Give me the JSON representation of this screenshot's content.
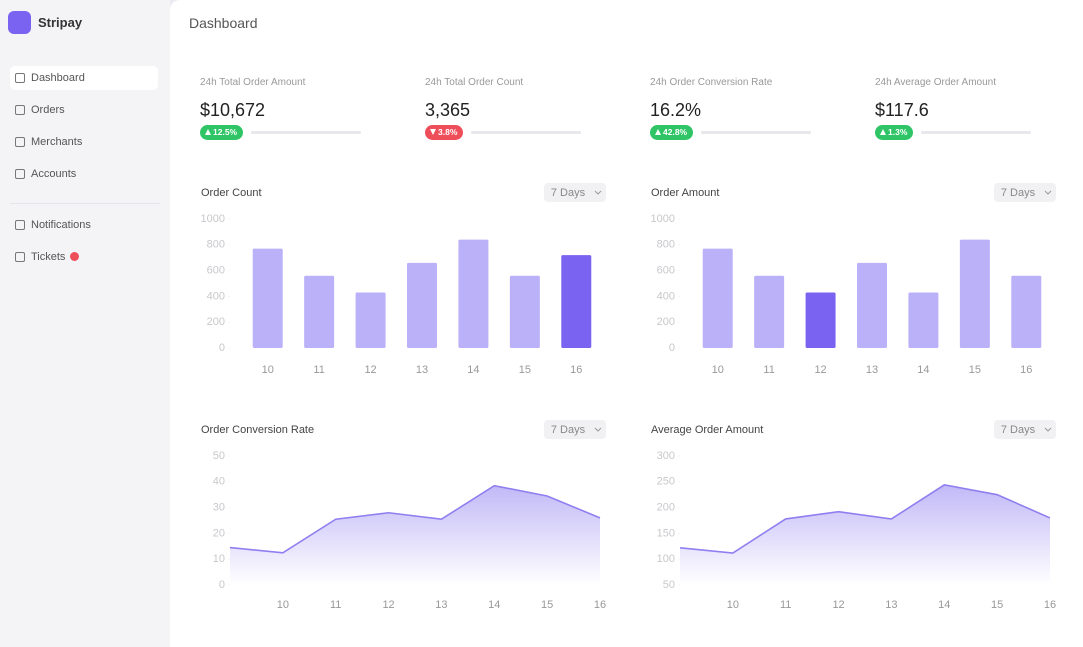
{
  "app": {
    "name": "Stripay"
  },
  "nav": [
    {
      "label": "Dashboard",
      "active": true
    },
    {
      "label": "Orders"
    },
    {
      "label": "Merchants"
    },
    {
      "label": "Accounts"
    },
    {
      "label": "Notifications"
    },
    {
      "label": "Tickets"
    }
  ],
  "header": {
    "title": "Dashboard"
  },
  "stats": [
    {
      "label": "24h Total Order Amount",
      "value": "$10,672",
      "change": "12.5%",
      "trend": "up"
    },
    {
      "label": "24h Total Order Count",
      "value": "3,365",
      "change": "3.8%",
      "trend": "down"
    },
    {
      "label": "24h Order Conversion Rate",
      "value": "16.2%",
      "change": "42.8%",
      "trend": "up"
    },
    {
      "label": "24h Average Order Amount",
      "value": "$117.6",
      "change": "1.3%",
      "trend": "up"
    }
  ],
  "chart_data": [
    {
      "type": "bar",
      "title": "Order Count",
      "range": "7 Days",
      "categories": [
        "10",
        "11",
        "12",
        "13",
        "14",
        "15",
        "16"
      ],
      "values": [
        770,
        560,
        430,
        660,
        840,
        560,
        720
      ],
      "colors": [
        "#bab1f8",
        "#bab1f8",
        "#bab1f8",
        "#bab1f8",
        "#bab1f8",
        "#bab1f8",
        "#7a63f0"
      ],
      "ylim": [
        0,
        1000
      ],
      "yticks": [
        0,
        200,
        400,
        600,
        800,
        1000
      ]
    },
    {
      "type": "bar",
      "title": "Order Amount",
      "range": "7 Days",
      "categories": [
        "10",
        "11",
        "12",
        "13",
        "14",
        "15",
        "16"
      ],
      "values": [
        770,
        560,
        430,
        660,
        430,
        840,
        560
      ],
      "colors": [
        "#bab1f8",
        "#bab1f8",
        "#7a63f0",
        "#bab1f8",
        "#bab1f8",
        "#bab1f8",
        "#bab1f8"
      ],
      "ylim": [
        0,
        1000
      ],
      "yticks": [
        0,
        200,
        400,
        600,
        800,
        1000
      ]
    },
    {
      "type": "area",
      "title": "Order Conversion Rate",
      "range": "7 Days",
      "categories": [
        null,
        "10",
        "11",
        "12",
        "13",
        "14",
        "15",
        "16"
      ],
      "values": [
        14.5,
        12.5,
        25.5,
        28,
        25.5,
        38.5,
        34.5,
        26
      ],
      "color": "#8f7ff0",
      "ylim": [
        0,
        50
      ],
      "yticks": [
        0,
        10,
        20,
        30,
        40,
        50
      ]
    },
    {
      "type": "area",
      "title": "Average Order Amount",
      "range": "7 Days",
      "categories": [
        null,
        "10",
        "11",
        "12",
        "13",
        "14",
        "15",
        "16"
      ],
      "values": [
        122,
        112,
        178,
        192,
        178,
        244,
        225,
        180
      ],
      "color": "#8f7ff0",
      "ylim": [
        50,
        300
      ],
      "yticks": [
        50,
        100,
        150,
        200,
        250,
        300
      ]
    }
  ]
}
